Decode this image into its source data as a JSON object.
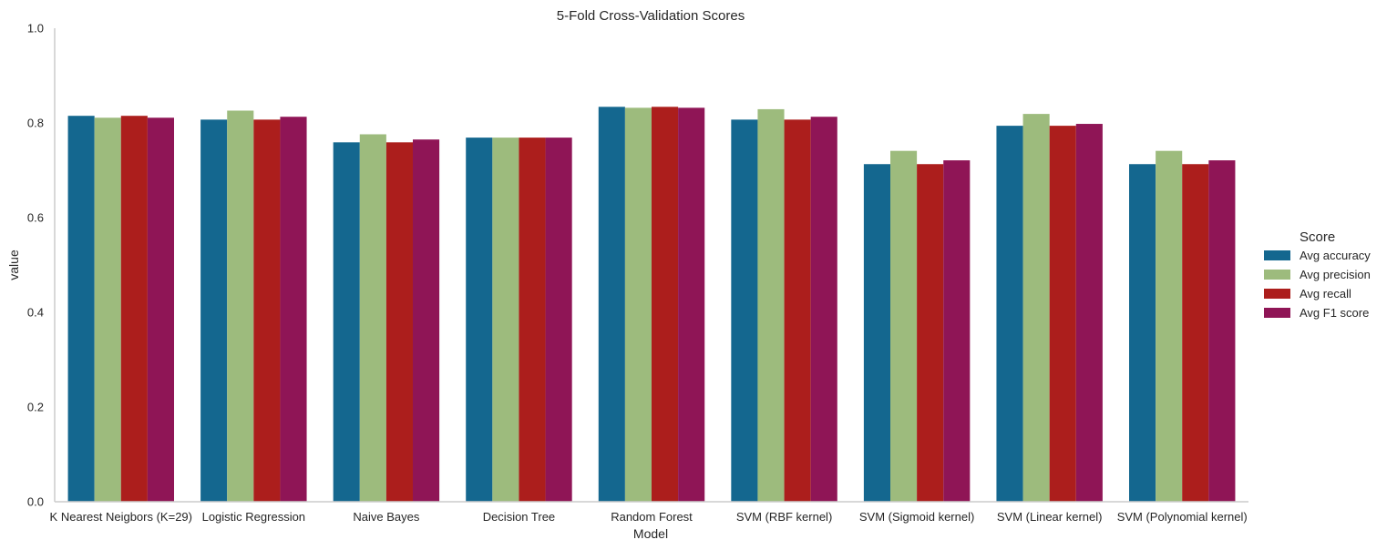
{
  "chart_data": {
    "type": "bar",
    "title": "5-Fold Cross-Validation Scores",
    "xlabel": "Model",
    "ylabel": "value",
    "ylim": [
      0,
      1.0
    ],
    "yticks": [
      "0.0",
      "0.2",
      "0.4",
      "0.6",
      "0.8",
      "1.0"
    ],
    "grid": false,
    "legend": {
      "title": "Score",
      "placement": "right"
    },
    "categories": [
      "K Nearest Neigbors (K=29)",
      "Logistic Regression",
      "Naive Bayes",
      "Decision Tree",
      "Random Forest",
      "SVM (RBF kernel)",
      "SVM (Sigmoid kernel)",
      "SVM (Linear kernel)",
      "SVM (Polynomial kernel)"
    ],
    "series": [
      {
        "name": "Avg accuracy",
        "color": "#14678f",
        "values": [
          0.815,
          0.807,
          0.759,
          0.769,
          0.834,
          0.807,
          0.713,
          0.794,
          0.713
        ]
      },
      {
        "name": "Avg precision",
        "color": "#9dbb7d",
        "values": [
          0.811,
          0.826,
          0.776,
          0.769,
          0.832,
          0.829,
          0.741,
          0.819,
          0.741
        ]
      },
      {
        "name": "Avg recall",
        "color": "#ac1e1c",
        "values": [
          0.815,
          0.807,
          0.759,
          0.769,
          0.834,
          0.807,
          0.713,
          0.794,
          0.713
        ]
      },
      {
        "name": "Avg F1 score",
        "color": "#8f1556",
        "values": [
          0.811,
          0.813,
          0.765,
          0.769,
          0.832,
          0.813,
          0.721,
          0.798,
          0.721
        ]
      }
    ]
  }
}
